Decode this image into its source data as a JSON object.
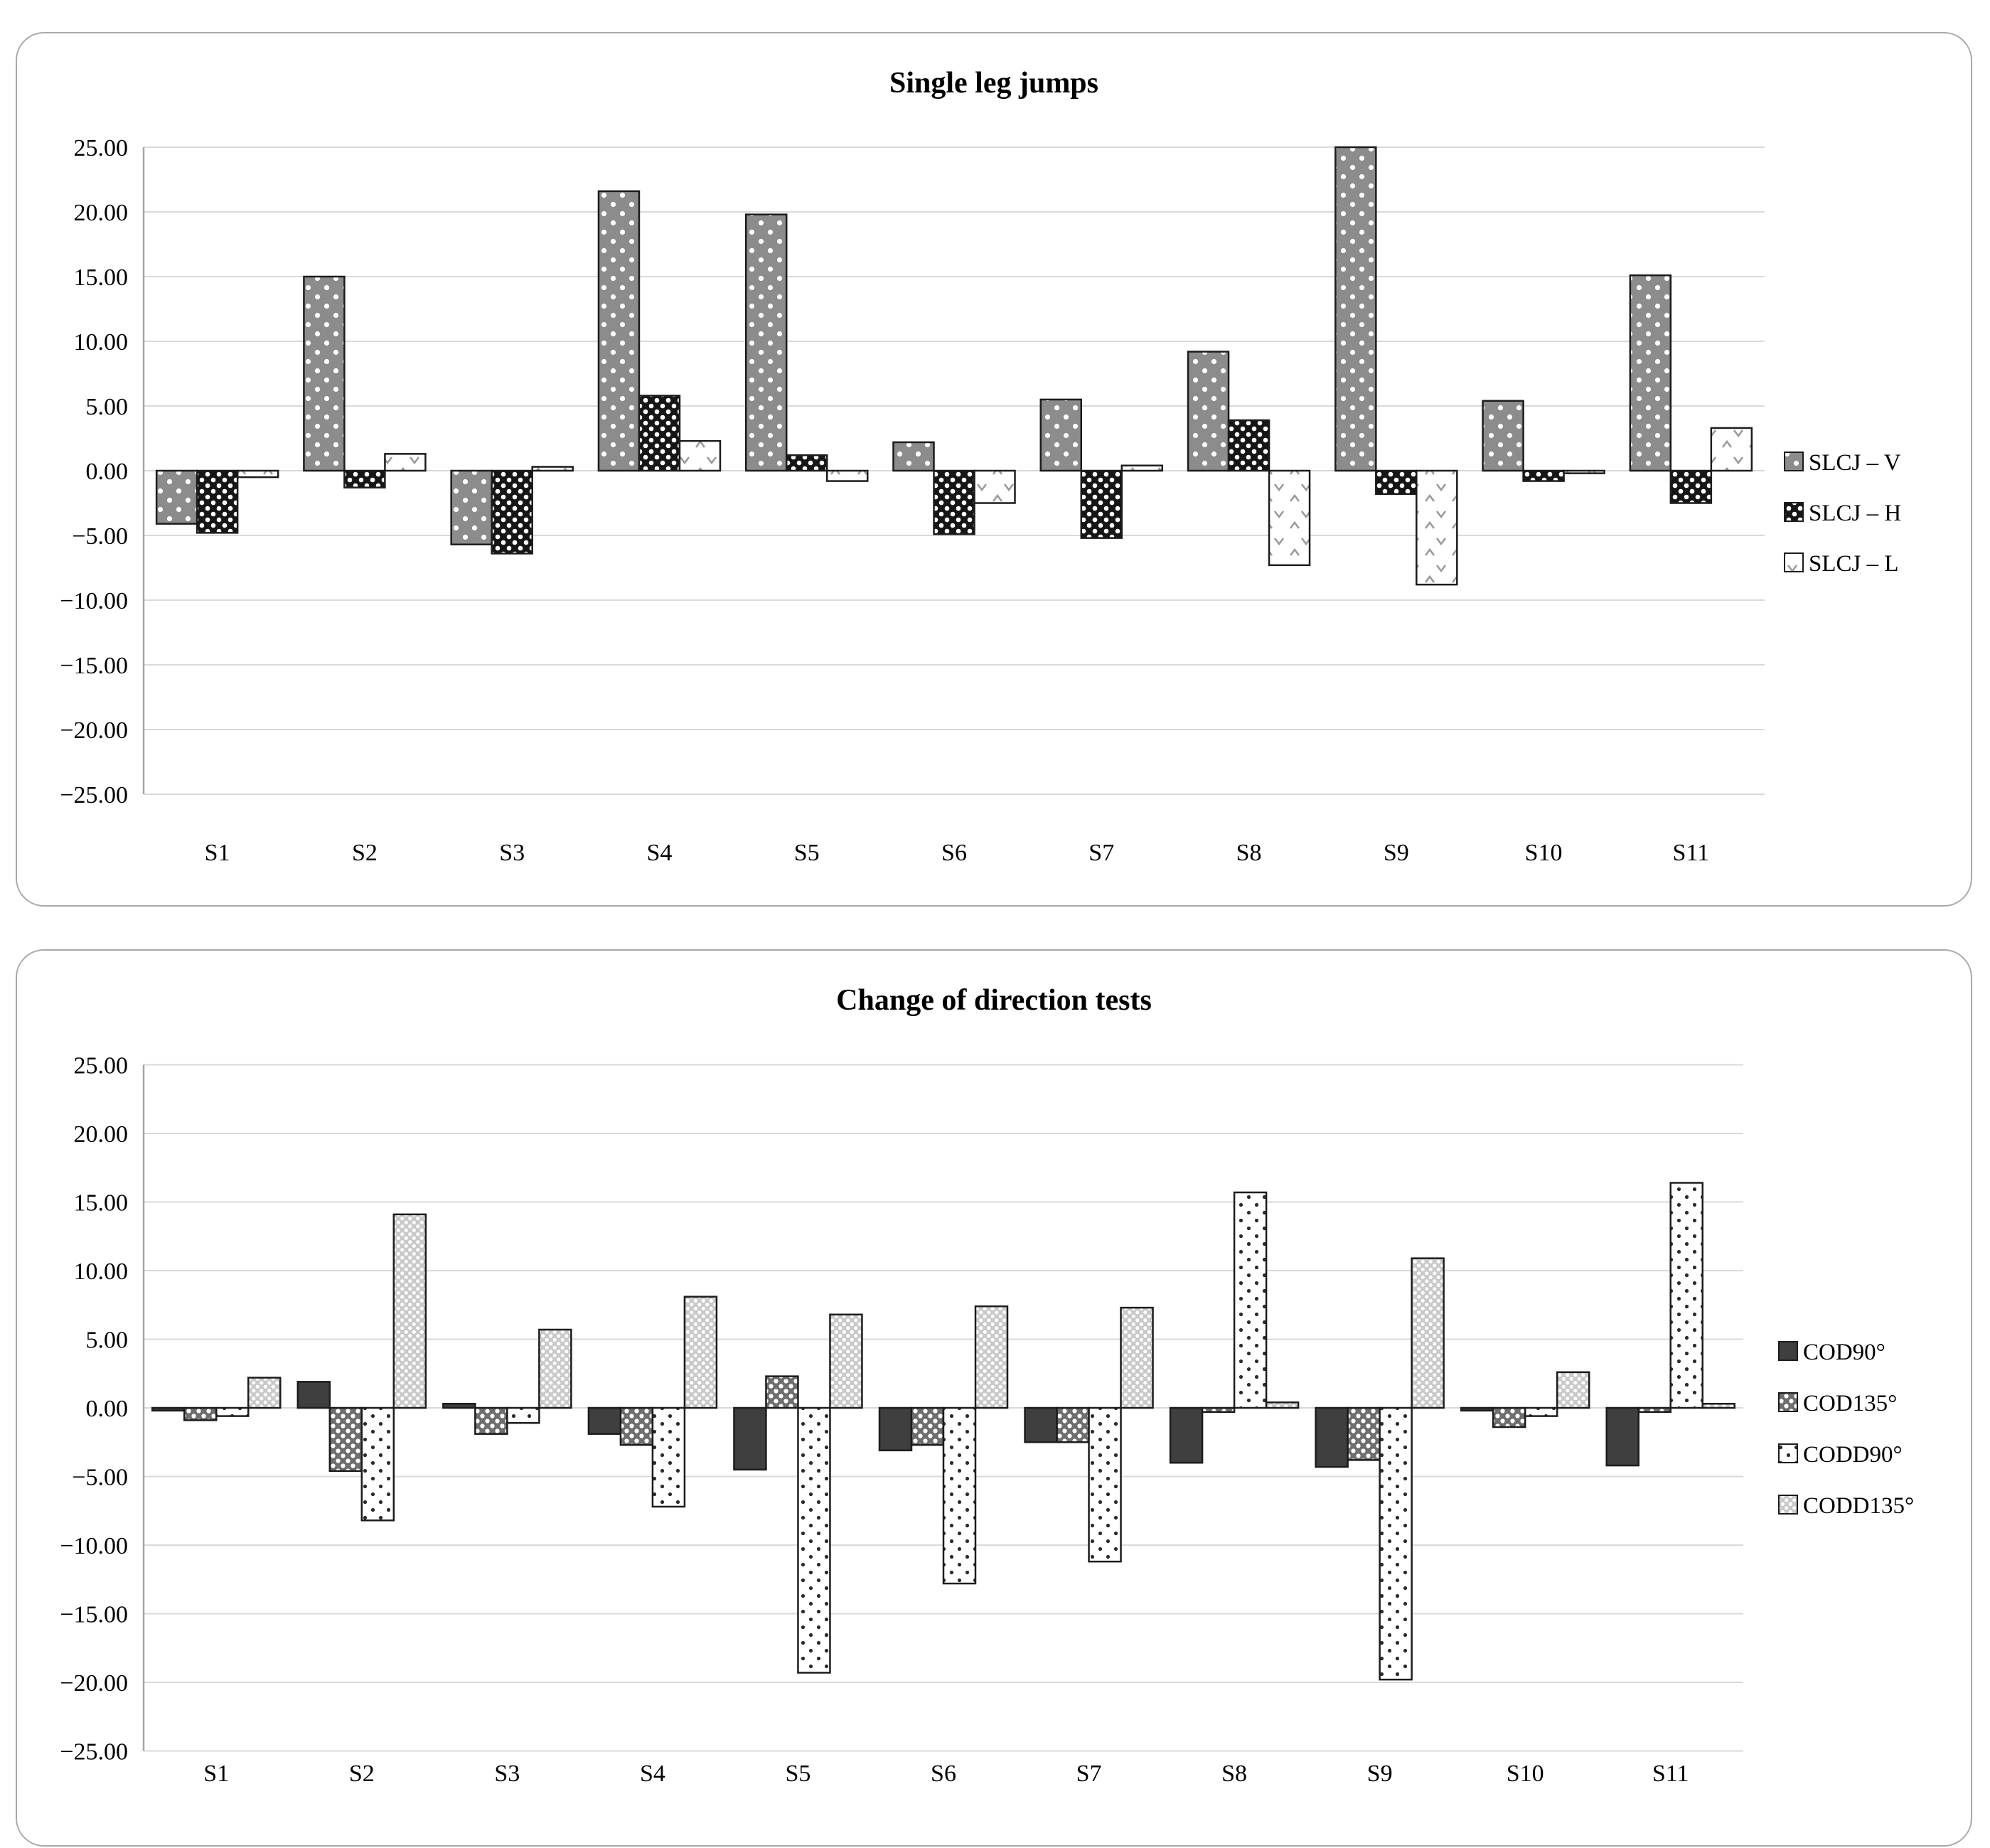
{
  "styles": {
    "background": "#ffffff",
    "panel_border": "#a9a9a9",
    "grid": "#d9d9d9",
    "axis": "#a6a6a6",
    "bar_outline": "#1c1c1c",
    "text": "#000000"
  },
  "chart_data": [
    {
      "type": "bar",
      "title": "Single leg jumps",
      "categories": [
        "S1",
        "S2",
        "S3",
        "S4",
        "S5",
        "S6",
        "S7",
        "S8",
        "S9",
        "S10",
        "S11"
      ],
      "series": [
        {
          "name": "SLCJ – V",
          "values": [
            -4.1,
            15.0,
            -5.7,
            21.6,
            19.8,
            2.2,
            5.5,
            9.2,
            25.0,
            5.4,
            15.1
          ],
          "pattern": {
            "type": "dots",
            "base": "#8c8c8c",
            "dot": "#ffffff",
            "tile": 26,
            "r": 3.6
          }
        },
        {
          "name": "SLCJ – H",
          "values": [
            -4.8,
            -1.3,
            -6.4,
            5.8,
            1.2,
            -4.9,
            -5.2,
            3.9,
            -1.8,
            -0.8,
            -2.5
          ],
          "pattern": {
            "type": "dots",
            "base": "#161616",
            "dot": "#ffffff",
            "tile": 16,
            "r": 3.3
          }
        },
        {
          "name": "SLCJ – L",
          "values": [
            -0.5,
            1.3,
            0.3,
            2.3,
            -0.8,
            -2.5,
            0.4,
            -7.3,
            -8.8,
            -0.2,
            3.3
          ],
          "pattern": {
            "type": "chevron",
            "base": "#ffffff",
            "mark": "#9a9a9a"
          }
        }
      ],
      "ylim": [
        -25,
        25
      ],
      "ytick_step": 5,
      "ytick_labels": [
        "25.00",
        "20.00",
        "15.00",
        "10.00",
        "5.00",
        "0.00",
        "−5.00",
        "−10.00",
        "−15.00",
        "−20.00",
        "−25.00"
      ],
      "xlabel": "",
      "ylabel": "",
      "grid": true,
      "legend_position": "right"
    },
    {
      "type": "bar",
      "title": "Change of direction tests",
      "categories": [
        "S1",
        "S2",
        "S3",
        "S4",
        "S5",
        "S6",
        "S7",
        "S8",
        "S9",
        "S10",
        "S11"
      ],
      "series": [
        {
          "name": "COD90°",
          "values": [
            -0.2,
            1.9,
            0.3,
            -1.9,
            -4.5,
            -3.1,
            -2.5,
            -4.0,
            -4.3,
            -0.2,
            -4.2
          ],
          "pattern": {
            "type": "solid",
            "base": "#3f3f3f"
          }
        },
        {
          "name": "COD135°",
          "values": [
            -0.9,
            -4.6,
            -1.9,
            -2.7,
            2.3,
            -2.7,
            -2.5,
            -0.3,
            -3.8,
            -1.4,
            -0.3
          ],
          "pattern": {
            "type": "dots",
            "base": "#6e6e6e",
            "dot": "#ffffff",
            "tile": 14,
            "r": 3.1
          }
        },
        {
          "name": "CODD90°",
          "values": [
            -0.6,
            -8.2,
            -1.1,
            -7.2,
            -19.3,
            -12.8,
            -11.2,
            15.7,
            -19.8,
            -0.6,
            16.4
          ],
          "pattern": {
            "type": "dots",
            "base": "#ffffff",
            "dot": "#2b2b2b",
            "tile": 22,
            "r": 2.6
          }
        },
        {
          "name": "CODD135°",
          "values": [
            2.2,
            14.1,
            5.7,
            8.1,
            6.8,
            7.4,
            7.3,
            0.4,
            10.9,
            2.6,
            0.3
          ],
          "pattern": {
            "type": "dots",
            "base": "#c9c9c9",
            "dot": "#ffffff",
            "tile": 11,
            "r": 2.6
          }
        }
      ],
      "ylim": [
        -25,
        25
      ],
      "ytick_step": 5,
      "ytick_labels": [
        "25.00",
        "20.00",
        "15.00",
        "10.00",
        "5.00",
        "0.00",
        "−5.00",
        "−10.00",
        "−15.00",
        "−20.00",
        "−25.00"
      ],
      "xlabel": "",
      "ylabel": "",
      "grid": true,
      "legend_position": "right"
    }
  ]
}
